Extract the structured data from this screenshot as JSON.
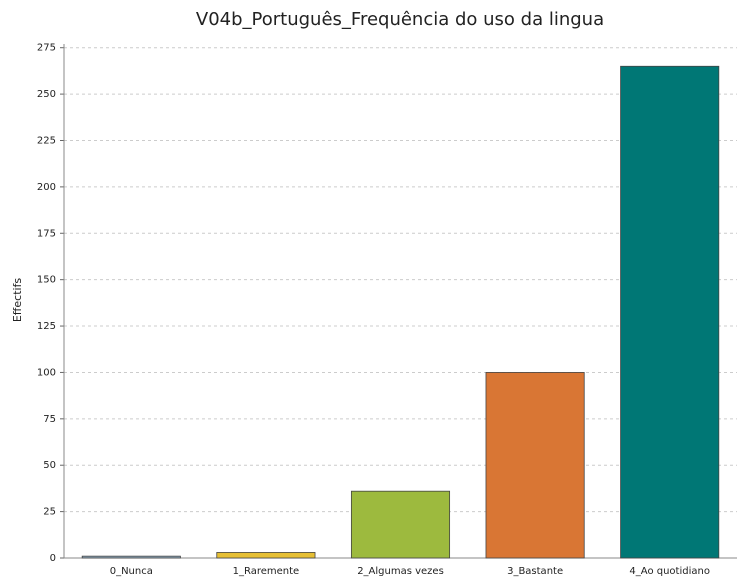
{
  "chart_data": {
    "type": "bar",
    "title": "V04b_Português_Frequência do uso da lingua",
    "y_label": "Effectifs",
    "categories": [
      "0_Nunca",
      "1_Raremente",
      "2_Algumas vezes",
      "3_Bastante",
      "4_Ao quotidiano"
    ],
    "values": [
      1,
      3,
      36,
      100,
      265
    ],
    "colors": [
      "#8faabd",
      "#e6bf34",
      "#9dba3e",
      "#d97634",
      "#007775"
    ],
    "ylim": [
      0,
      277
    ],
    "yticks": [
      0,
      25,
      50,
      75,
      100,
      125,
      150,
      175,
      200,
      225,
      250,
      275
    ],
    "grid": true
  }
}
